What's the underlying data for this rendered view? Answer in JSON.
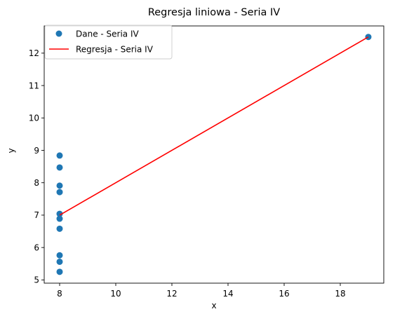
{
  "chart_data": {
    "type": "scatter",
    "title": "Regresja liniowa - Seria IV",
    "xlabel": "x",
    "ylabel": "y",
    "xlim": [
      7.45,
      19.55
    ],
    "ylim": [
      4.9,
      12.84
    ],
    "xticks": [
      8,
      10,
      12,
      14,
      16,
      18
    ],
    "yticks": [
      5,
      6,
      7,
      8,
      9,
      10,
      11,
      12
    ],
    "grid": false,
    "legend_position": "top-left",
    "series": [
      {
        "name": "Dane - Seria IV",
        "kind": "scatter",
        "color": "#1f77b4",
        "x": [
          8,
          8,
          8,
          8,
          8,
          8,
          8,
          19,
          8,
          8,
          8
        ],
        "y": [
          6.58,
          5.76,
          7.71,
          8.84,
          8.47,
          7.04,
          5.25,
          12.5,
          5.56,
          7.91,
          6.89
        ]
      },
      {
        "name": "Regresja - Seria IV",
        "kind": "line",
        "color": "#ff0000",
        "x": [
          8,
          19
        ],
        "y": [
          7.0,
          12.5
        ]
      }
    ]
  }
}
